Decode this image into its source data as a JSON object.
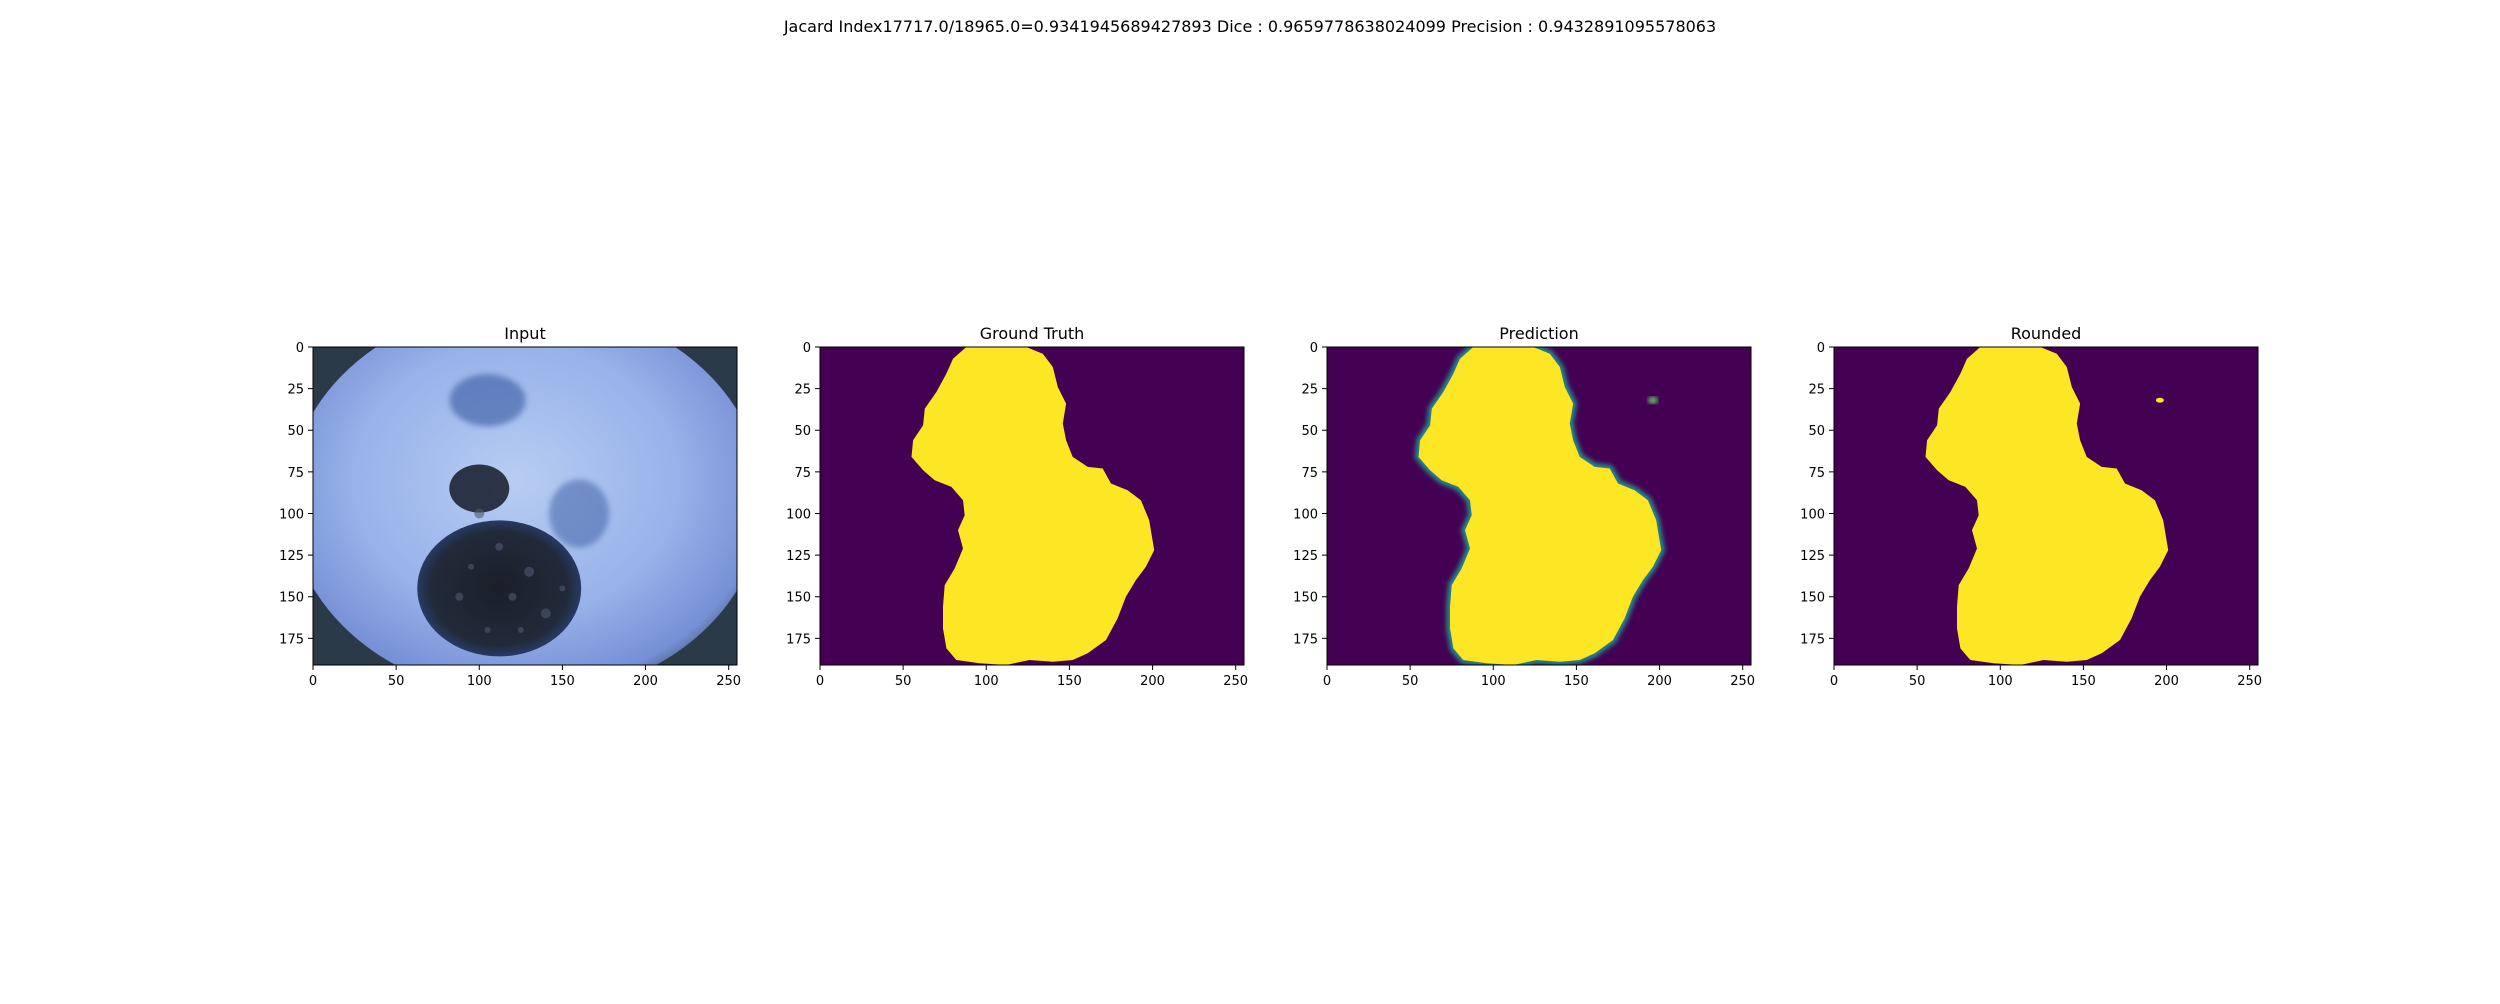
{
  "suptitle": "Jacard Index17717.0/18965.0=0.9341945689427893 Dice : 0.9659778638024099 Precision : 0.9432891095578063",
  "colors": {
    "viridis_low": "#440154",
    "viridis_high": "#fde725",
    "viridis_mid": "#21918c",
    "skin_light": "#a9c0ec",
    "skin_mid": "#7f9de0",
    "lesion_dark": "#1d2433",
    "lesion_blue": "#2f4f9a",
    "vignette": "#2a3a48"
  },
  "chart_data": [
    {
      "type": "image",
      "title": "Input",
      "xlim": [
        0,
        255
      ],
      "ylim": [
        191,
        0
      ],
      "xticks": [
        0,
        50,
        100,
        150,
        200,
        250
      ],
      "yticks": [
        0,
        25,
        50,
        75,
        100,
        125,
        150,
        175
      ],
      "content": "dermoscopy-photo"
    },
    {
      "type": "image",
      "title": "Ground Truth",
      "xlim": [
        0,
        255
      ],
      "ylim": [
        191,
        0
      ],
      "xticks": [
        0,
        50,
        100,
        150,
        200,
        250
      ],
      "yticks": [
        0,
        25,
        50,
        75,
        100,
        125,
        150,
        175
      ],
      "content": "binary-mask",
      "colormap": "viridis"
    },
    {
      "type": "image",
      "title": "Prediction",
      "xlim": [
        0,
        255
      ],
      "ylim": [
        191,
        0
      ],
      "xticks": [
        0,
        50,
        100,
        150,
        200,
        250
      ],
      "yticks": [
        0,
        25,
        50,
        75,
        100,
        125,
        150,
        175
      ],
      "content": "probability-map",
      "colormap": "viridis"
    },
    {
      "type": "image",
      "title": "Rounded",
      "xlim": [
        0,
        255
      ],
      "ylim": [
        191,
        0
      ],
      "xticks": [
        0,
        50,
        100,
        150,
        200,
        250
      ],
      "yticks": [
        0,
        25,
        50,
        75,
        100,
        125,
        150,
        175
      ],
      "content": "binary-mask",
      "colormap": "viridis"
    }
  ]
}
